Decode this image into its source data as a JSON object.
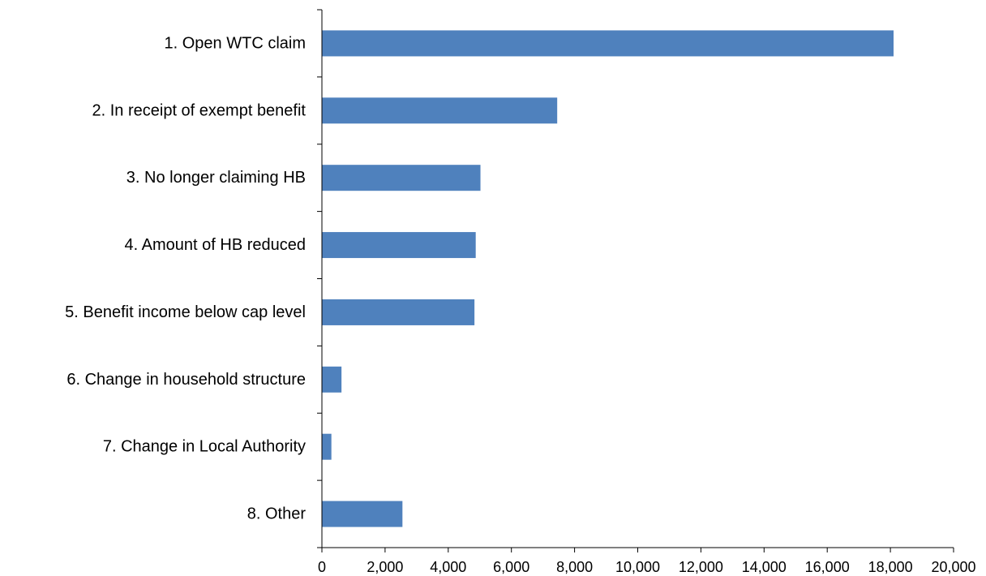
{
  "chart_data": {
    "type": "bar",
    "orientation": "horizontal",
    "title": "",
    "xlabel": "",
    "ylabel": "",
    "categories": [
      "1. Open WTC claim",
      "2. In receipt of exempt benefit",
      "3. No longer claiming HB",
      "4. Amount of HB reduced",
      "5. Benefit income below cap level",
      "6. Change in household structure",
      "7. Change in Local Authority",
      "8. Other"
    ],
    "values": [
      18100,
      7450,
      5020,
      4870,
      4830,
      620,
      300,
      2550
    ],
    "xlim": [
      0,
      20000
    ],
    "xticks": [
      0,
      2000,
      4000,
      6000,
      8000,
      10000,
      12000,
      14000,
      16000,
      18000,
      20000
    ],
    "xtick_labels": [
      "0",
      "2,000",
      "4,000",
      "6,000",
      "8,000",
      "10,000",
      "12,000",
      "14,000",
      "16,000",
      "18,000",
      "20,000"
    ],
    "grid": false,
    "legend": "none",
    "bar_color": "#4f81bd"
  }
}
